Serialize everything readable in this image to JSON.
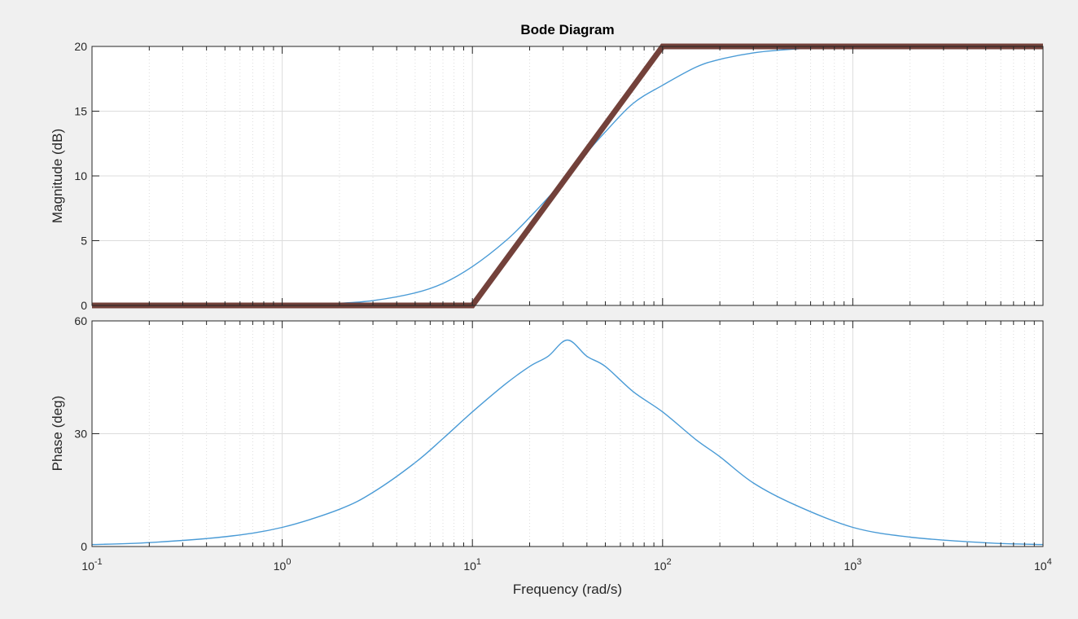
{
  "figure": {
    "title": "Bode Diagram",
    "xlabel": "Frequency  (rad/s)",
    "background": "#f0f0f0",
    "axes_background": "#ffffff",
    "axes_color": "#262626",
    "grid_color": "#dcdcdc"
  },
  "chart_data": [
    {
      "type": "line",
      "name": "magnitude",
      "ylabel": "Magnitude (dB)",
      "xscale": "log",
      "xlim": [
        0.1,
        10000
      ],
      "ylim": [
        0,
        20
      ],
      "yticks": [
        0,
        5,
        10,
        15,
        20
      ],
      "grid": true,
      "series": [
        {
          "kind": "bode-response",
          "color": "#4a9bd6",
          "x": [
            0.1,
            0.5,
            1,
            2,
            3,
            5,
            7,
            10,
            15,
            20,
            30,
            40,
            50,
            70,
            100,
            150,
            200,
            300,
            500,
            1000,
            10000
          ],
          "values": [
            0.0,
            0.0,
            0.04,
            0.17,
            0.37,
            0.97,
            1.7,
            3.0,
            5.0,
            6.8,
            9.6,
            11.8,
            13.4,
            15.6,
            17.0,
            18.4,
            19.0,
            19.5,
            19.8,
            19.96,
            20.0
          ]
        },
        {
          "kind": "asymptote",
          "color": "#6e3b34",
          "x": [
            0.1,
            10,
            100,
            10000
          ],
          "values": [
            0,
            0,
            20,
            20
          ]
        }
      ]
    },
    {
      "type": "line",
      "name": "phase",
      "ylabel": "Phase (deg)",
      "xscale": "log",
      "xlim": [
        0.1,
        10000
      ],
      "ylim": [
        0,
        60
      ],
      "yticks": [
        0,
        30,
        60
      ],
      "grid": true,
      "series": [
        {
          "kind": "bode-response",
          "color": "#4a9bd6",
          "x": [
            0.1,
            0.2,
            0.5,
            1,
            2,
            3,
            5,
            7,
            10,
            15,
            20,
            25,
            31.6,
            40,
            50,
            70,
            100,
            150,
            200,
            300,
            500,
            1000,
            2000,
            5000,
            10000
          ],
          "values": [
            0.51,
            1.03,
            2.6,
            5.1,
            9.9,
            14.4,
            22.3,
            28.7,
            35.8,
            43.3,
            47.9,
            50.6,
            54.9,
            50.6,
            47.9,
            41.2,
            35.8,
            28.4,
            23.9,
            16.9,
            11.0,
            5.1,
            2.5,
            1.0,
            0.51
          ]
        }
      ]
    }
  ]
}
